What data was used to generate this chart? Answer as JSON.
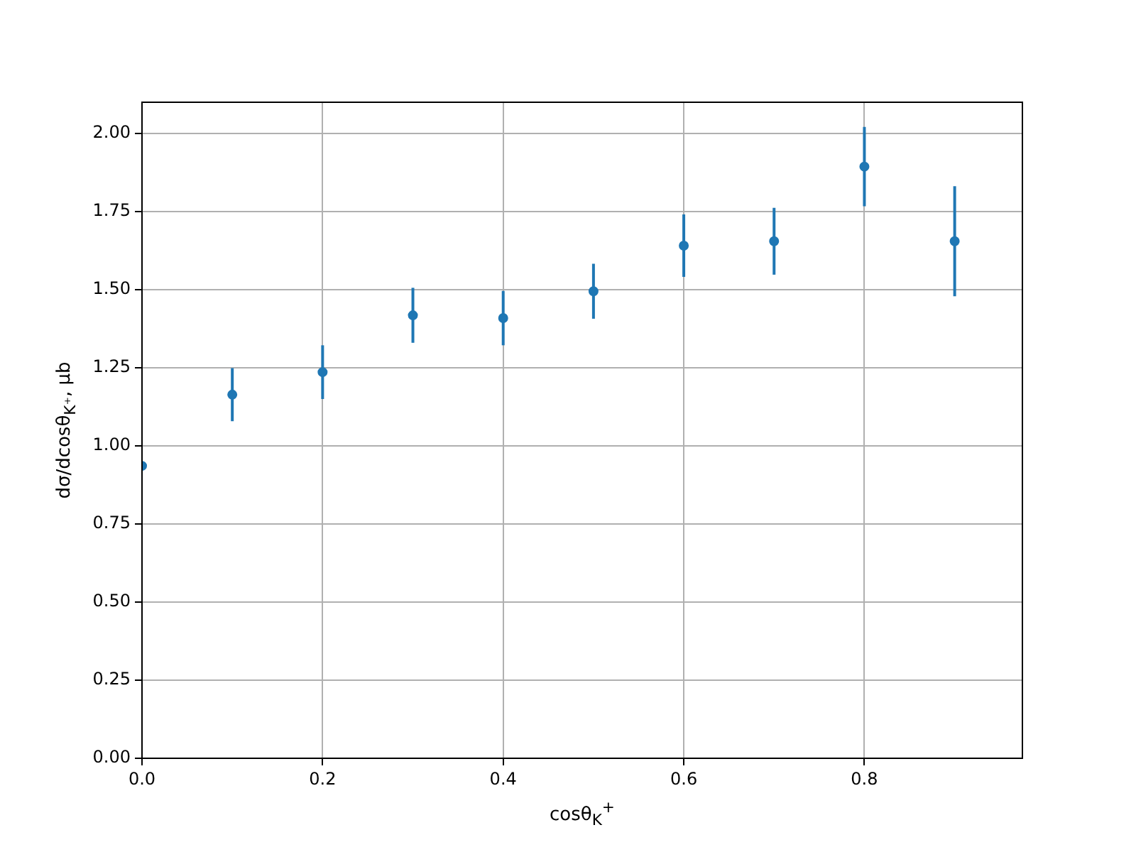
{
  "chart_data": {
    "type": "scatter",
    "xlabel": "cosθ$_{K}$$^{+}$",
    "ylabel": "dσ/dcosθ$_{K⁺}$, μb",
    "x": [
      0,
      0.1,
      0.2,
      0.3,
      0.4,
      0.5,
      0.6,
      0.7,
      0.8,
      0.9
    ],
    "series": [
      {
        "color": "#1f77b4",
        "values": [
          0.936,
          1.164,
          1.236,
          1.418,
          1.409,
          1.495,
          1.641,
          1.655,
          1.894,
          1.655
        ],
        "errors": [
          null,
          0.085,
          0.086,
          0.088,
          0.087,
          0.088,
          0.1,
          0.107,
          0.127,
          0.176
        ]
      }
    ],
    "xlim": [
      0,
      0.975
    ],
    "xticks": [
      {
        "value": 0,
        "label": "0.0"
      },
      0.2,
      0.4,
      0.6,
      0.8
    ],
    "ylim": [
      0,
      2.1
    ],
    "yticks": [
      {
        "value": 0,
        "label": "0.00"
      },
      0.25,
      {
        "value": 0.5,
        "label": "0.50"
      },
      0.75,
      {
        "value": 1,
        "label": "1.00"
      },
      1.25,
      {
        "value": 1.5,
        "label": "1.50"
      },
      1.75,
      {
        "value": 2,
        "label": "2.00"
      }
    ],
    "grid": true,
    "legend": false,
    "marker": "circle"
  }
}
